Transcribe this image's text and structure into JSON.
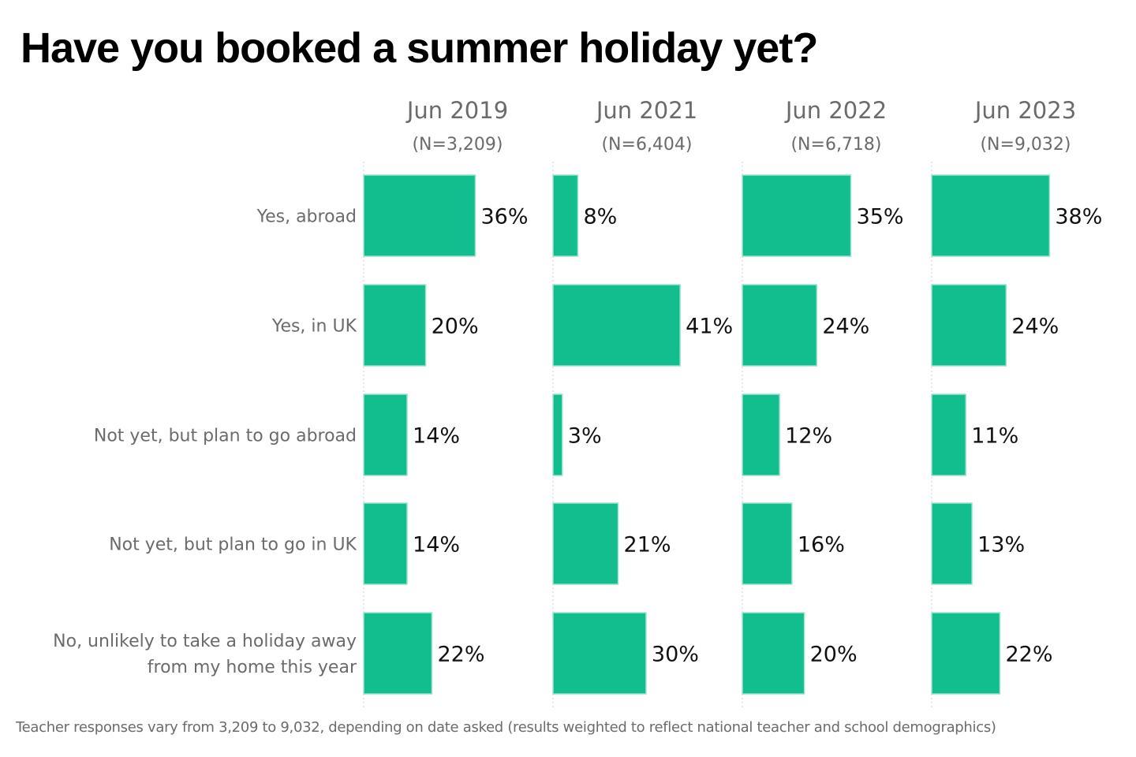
{
  "title": "Have you booked a summer holiday yet?",
  "footnote": "Teacher responses vary from 3,209 to 9,032, depending on date asked (results weighted to reflect national teacher and school demographics)",
  "colors": {
    "bar": "#12BD8E",
    "bar_stroke": "#9FE3CF"
  },
  "chart_data": {
    "type": "bar",
    "orientation": "horizontal",
    "title": "Have you booked a summer holiday yet?",
    "categories": [
      [
        "Yes, abroad"
      ],
      [
        "Yes, in UK"
      ],
      [
        "Not yet, but plan to go abroad"
      ],
      [
        "Not yet, but plan to go in UK"
      ],
      [
        "No, unlikely to take a holiday away",
        "from my home this year"
      ]
    ],
    "value_suffix": "%",
    "xlim": [
      0,
      100
    ],
    "series": [
      {
        "name": "Jun 2019",
        "n_label": "(N=3,209)",
        "values": [
          36,
          20,
          14,
          14,
          22
        ]
      },
      {
        "name": "Jun 2021",
        "n_label": "(N=6,404)",
        "values": [
          8,
          41,
          3,
          21,
          30
        ]
      },
      {
        "name": "Jun 2022",
        "n_label": "(N=6,718)",
        "values": [
          35,
          24,
          12,
          16,
          20
        ]
      },
      {
        "name": "Jun 2023",
        "n_label": "(N=9,032)",
        "values": [
          38,
          24,
          11,
          13,
          22
        ]
      }
    ]
  }
}
